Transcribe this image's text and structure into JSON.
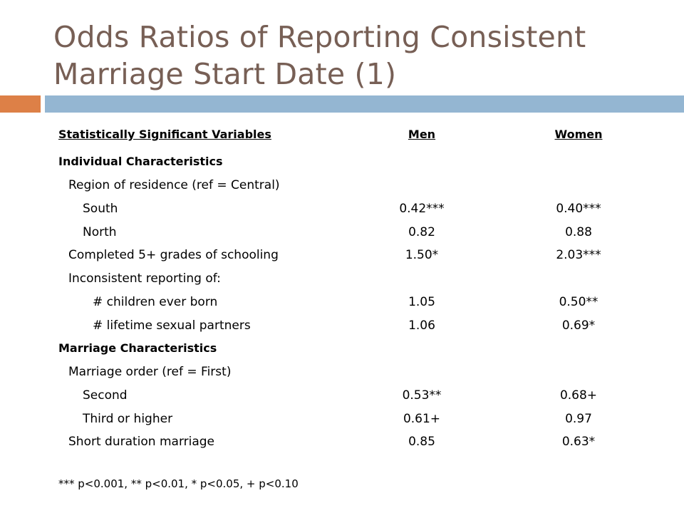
{
  "title": "Odds Ratios of Reporting Consistent Marriage Start Date (1)",
  "colors": {
    "title": "#775f55",
    "accent_orange": "#dd8047",
    "accent_blue": "#94b6d2"
  },
  "table": {
    "headers": {
      "variable": "Statistically Significant Variables",
      "men": "Men",
      "women": "Women"
    },
    "rows": [
      {
        "label": "Individual Characteristics",
        "men": "",
        "women": ""
      },
      {
        "label": "Region of residence (ref = Central)",
        "men": "",
        "women": ""
      },
      {
        "label": "South",
        "men": "0.42***",
        "women": "0.40***"
      },
      {
        "label": "North",
        "men": "0.82",
        "women": "0.88"
      },
      {
        "label": "Completed 5+ grades of schooling",
        "men": "1.50*",
        "women": "2.03***"
      },
      {
        "label": "Inconsistent reporting of:",
        "men": "",
        "women": ""
      },
      {
        "label": "# children ever born",
        "men": "1.05",
        "women": "0.50**"
      },
      {
        "label": "# lifetime sexual partners",
        "men": "1.06",
        "women": "0.69*"
      },
      {
        "label": "Marriage Characteristics",
        "men": "",
        "women": ""
      },
      {
        "label": "Marriage order (ref = First)",
        "men": "",
        "women": ""
      },
      {
        "label": "Second",
        "men": "0.53**",
        "women": "0.68+"
      },
      {
        "label": "Third or higher",
        "men": "0.61+",
        "women": "0.97"
      },
      {
        "label": "Short duration marriage",
        "men": "0.85",
        "women": "0.63*"
      }
    ]
  },
  "footnote": "*** p<0.001, ** p<0.01, * p<0.05, + p<0.10"
}
